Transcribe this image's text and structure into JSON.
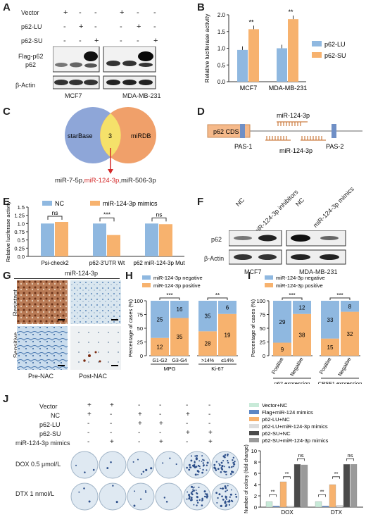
{
  "panels": {
    "A": "A",
    "B": "B",
    "C": "C",
    "D": "D",
    "E": "E",
    "F": "F",
    "G": "G",
    "H": "H",
    "I": "I",
    "J": "J"
  },
  "panel_a": {
    "rows": [
      "Vector",
      "p62-LU",
      "p62-SU"
    ],
    "signs": [
      [
        "+",
        "-",
        "-",
        "+",
        "-",
        "-"
      ],
      [
        "-",
        "+",
        "-",
        "-",
        "+",
        "-"
      ],
      [
        "-",
        "-",
        "+",
        "-",
        "-",
        "+"
      ]
    ],
    "bands": [
      "Flag-p62",
      "p62",
      "β-Actin"
    ],
    "cells": [
      "MCF7",
      "MDA-MB-231"
    ]
  },
  "panel_b_chart": {
    "type": "bar",
    "categories": [
      "MCF7",
      "MDA-MB-231"
    ],
    "series": [
      {
        "name": "p62-LU",
        "values": [
          0.95,
          1.0
        ]
      },
      {
        "name": "p62-SU",
        "values": [
          1.57,
          1.87
        ]
      }
    ],
    "ylabel": "Relative luciferase activity",
    "ylim": [
      0,
      2.0
    ],
    "yticks": [
      "0.0",
      "0.5",
      "1.0",
      "1.5",
      "2.0"
    ],
    "significance": [
      "**",
      "**"
    ],
    "colors": {
      "p62-LU": "#8fb8e0",
      "p62-SU": "#f7b26e"
    }
  },
  "panel_c": {
    "left": "starBase",
    "right": "miRDB",
    "overlap": "3",
    "result_a": "miR-7-5p,",
    "result_b": "miR-124-3p",
    "result_c": ",miR-506-3p",
    "colors": {
      "left": "#8ea6d8",
      "right": "#f0a06a",
      "overlap": "#f5e16a",
      "arrow": "#d42a2a"
    }
  },
  "panel_d": {
    "cds": "p62 CDS",
    "pas1": "PAS-1",
    "pas2": "PAS-2",
    "mir_top": "miR-124-3p",
    "mir_bottom": "miR-124-3p"
  },
  "panel_e_chart": {
    "type": "bar",
    "categories": [
      "Psi-check2",
      "p62-3'UTR Wt",
      "p62 miR-124-3p Mut"
    ],
    "series": [
      {
        "name": "NC",
        "values": [
          1.0,
          1.0,
          1.0
        ]
      },
      {
        "name": "miR-124-3p mimics",
        "values": [
          1.05,
          0.65,
          0.98
        ]
      }
    ],
    "ylabel": "Relative luciferase activity",
    "ylim": [
      0,
      1.5
    ],
    "yticks": [
      "0.0",
      "0.25",
      "0.5",
      "0.75",
      "1.0",
      "1.25",
      "1.5"
    ],
    "significance": [
      "ns",
      "***",
      "ns"
    ]
  },
  "panel_f": {
    "lanes": [
      "NC",
      "miR-124-3p inhibitors",
      "NC",
      "miR-124-3p mimics"
    ],
    "bands": [
      "p62",
      "β-Actin"
    ],
    "cells": [
      "MCF7",
      "MDA-MB-231"
    ]
  },
  "panel_g": {
    "title": "miR-124-3p",
    "rows": [
      "Resistant",
      "Sensitive"
    ],
    "cols": [
      "Pre-NAC",
      "Post-NAC"
    ]
  },
  "panel_h_chart": {
    "type": "bar",
    "ylabel": "Percentage of cases (%)",
    "ylim": [
      0,
      100
    ],
    "yticks": [
      "0",
      "25",
      "50",
      "75",
      "100"
    ],
    "legend": [
      "miR-124-3p negative",
      "miR-124-3p positive"
    ],
    "groups": [
      {
        "name": "MPG",
        "categories": [
          "G1-G2",
          "G3-G4"
        ],
        "negative": [
          25,
          16
        ],
        "positive": [
          12,
          35
        ],
        "sig": "***"
      },
      {
        "name": "Ki-67",
        "categories": [
          ">14%",
          "≤14%"
        ],
        "negative": [
          35,
          6
        ],
        "positive": [
          28,
          19
        ],
        "sig": "**"
      }
    ]
  },
  "panel_i_chart": {
    "type": "bar",
    "ylabel": "Percentage of cases (%)",
    "ylim": [
      0,
      100
    ],
    "yticks": [
      "0",
      "25",
      "50",
      "75",
      "100"
    ],
    "legend": [
      "miR-124-3p negative",
      "miR-124-3p positive"
    ],
    "groups": [
      {
        "name": "p62 expression",
        "categories": [
          "Positive",
          "Negative"
        ],
        "negative": [
          29,
          12
        ],
        "positive": [
          9,
          38
        ],
        "sig": "***"
      },
      {
        "name": "CPSF1 expression",
        "categories": [
          "Positive",
          "Negative"
        ],
        "negative": [
          33,
          8
        ],
        "positive": [
          15,
          32
        ],
        "sig": "***"
      }
    ]
  },
  "panel_j": {
    "rows": [
      "Vector",
      "NC",
      "p62-LU",
      "p62-SU",
      "miR-124-3p mimics"
    ],
    "signs": [
      [
        "+",
        "+",
        "",
        "",
        " ",
        ""
      ],
      [
        "+",
        "",
        "+",
        "",
        "+",
        ""
      ],
      [
        "",
        "",
        "+",
        "+",
        "",
        ""
      ],
      [
        "",
        "",
        "",
        "",
        "+",
        "+"
      ],
      [
        "",
        "+",
        "",
        "+",
        "",
        "+"
      ]
    ],
    "signs_full": [
      [
        "+",
        "+",
        "-",
        "-",
        "-",
        "-"
      ],
      [
        "+",
        "-",
        "+",
        "-",
        "+",
        "-"
      ],
      [
        "-",
        "-",
        "+",
        "+",
        "-",
        "-"
      ],
      [
        "-",
        "-",
        "-",
        "-",
        "+",
        "+"
      ],
      [
        "-",
        "+",
        "-",
        "+",
        "-",
        "+"
      ]
    ],
    "plate_rows": [
      "DOX 0.5 μmol/L",
      "DTX 1 nmol/L"
    ]
  },
  "panel_j_chart": {
    "type": "bar",
    "categories": [
      "DOX",
      "DTX"
    ],
    "ylabel": "Number of colony (fold change)",
    "ylim": [
      0,
      10
    ],
    "yticks": [
      "0",
      "2",
      "4",
      "6",
      "8",
      "10"
    ],
    "series": [
      {
        "name": "Vector+NC",
        "values": [
          1.0,
          1.0
        ],
        "color": "#c8ead8"
      },
      {
        "name": "Flag+miR-124 mimics",
        "values": [
          0.2,
          0.2
        ],
        "color": "#5b86c5"
      },
      {
        "name": "p62-LU+NC",
        "values": [
          4.5,
          4.0
        ],
        "color": "#f7b26e"
      },
      {
        "name": "p62-LU+miR-124-3p mimics",
        "values": [
          0.2,
          0.3
        ],
        "color": "#dcdcdc"
      },
      {
        "name": "p62-SU+NC",
        "values": [
          7.6,
          7.6
        ],
        "color": "#4a4a4a"
      },
      {
        "name": "p62-SU+miR-124-3p mimics",
        "values": [
          7.5,
          7.6
        ],
        "color": "#9a9a9a"
      }
    ],
    "significance": [
      "**",
      "**",
      "ns"
    ]
  }
}
